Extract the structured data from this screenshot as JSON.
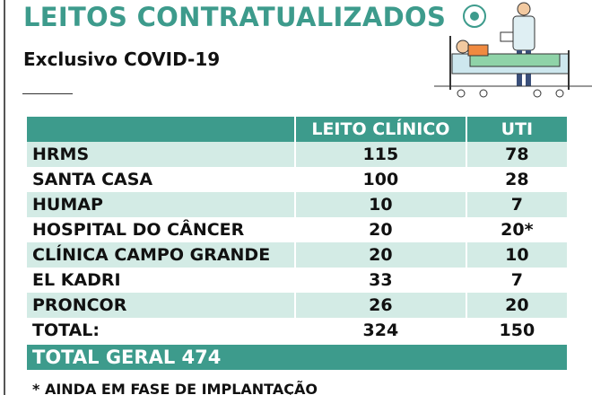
{
  "header": {
    "title": "LEITOS CONTRATUALIZADOS",
    "subtitle": "Exclusivo COVID-19"
  },
  "table": {
    "columns": [
      "LEITO CLÍNICO",
      "UTI"
    ],
    "rows": [
      [
        "HRMS",
        115,
        78
      ],
      [
        "SANTA CASA",
        100,
        28
      ],
      [
        "HUMAP",
        10,
        7
      ],
      [
        "HOSPITAL DO CÂNCER",
        20,
        "20*"
      ],
      [
        "CLÍNICA CAMPO GRANDE",
        20,
        10
      ],
      [
        "EL KADRI",
        33,
        7
      ],
      [
        "PRONCOR",
        26,
        20
      ]
    ],
    "total": [
      "TOTAL:",
      324,
      150
    ],
    "grand_total": "TOTAL GERAL 474"
  },
  "footnote": "* AINDA EM FASE DE IMPLANTAÇÃO"
}
